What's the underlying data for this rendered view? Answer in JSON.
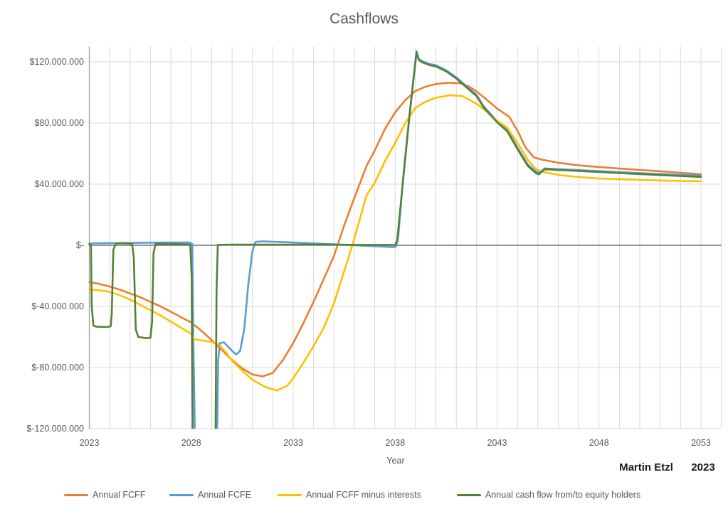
{
  "chart": {
    "title": "Cashflows",
    "x_axis": {
      "label": "Year",
      "tick_labels": [
        "2023",
        "2028",
        "2033",
        "2038",
        "2043",
        "2048",
        "2053"
      ],
      "tick_years": [
        2023,
        2028,
        2033,
        2038,
        2043,
        2048,
        2053
      ]
    },
    "y_axis": {
      "tick_labels": [
        "$120.000.000",
        "$80.000.000",
        "$40.000.000",
        "$-",
        "$-40.000.000",
        "$-80.000.000",
        "$-120.000.000"
      ],
      "tick_values_millions": [
        120,
        80,
        40,
        0,
        -40,
        -80,
        -120
      ]
    },
    "footer": {
      "author": "Martin Etzl",
      "year": "2023"
    },
    "colors": {
      "grid": "#D9D9D9",
      "zero_axis": "#595959",
      "y_axis_line": "#9e9e9e",
      "text": "#595959"
    }
  },
  "chart_data": {
    "type": "line",
    "title": "Cashflows",
    "xlabel": "Year",
    "ylabel": "",
    "values_unit": "millions of USD",
    "xlim": [
      2023,
      2054
    ],
    "ylim_millions": [
      -120,
      130
    ],
    "grid": {
      "vertical_step_years": 1,
      "horizontal_step_millions": 40,
      "legend_position": "bottom"
    },
    "x_ticks": [
      2023,
      2028,
      2033,
      2038,
      2043,
      2048,
      2053
    ],
    "y_ticks_millions": [
      120,
      80,
      40,
      0,
      -40,
      -80,
      -120
    ],
    "series": [
      {
        "name": "Annual FCFF",
        "color": "#ED7D31",
        "points": [
          [
            2023,
            -24
          ],
          [
            2023.5,
            -25.3
          ],
          [
            2024,
            -27
          ],
          [
            2024.5,
            -29
          ],
          [
            2025,
            -31.5
          ],
          [
            2025.5,
            -34
          ],
          [
            2026,
            -37
          ],
          [
            2026.5,
            -40
          ],
          [
            2027,
            -43.5
          ],
          [
            2027.5,
            -47
          ],
          [
            2028,
            -50.5
          ],
          [
            2028.5,
            -56
          ],
          [
            2029,
            -62
          ],
          [
            2029.5,
            -68.5
          ],
          [
            2030,
            -75
          ],
          [
            2030.5,
            -80.5
          ],
          [
            2031,
            -84.5
          ],
          [
            2031.5,
            -85.8
          ],
          [
            2032,
            -83.5
          ],
          [
            2032.5,
            -75
          ],
          [
            2033,
            -64
          ],
          [
            2033.5,
            -51
          ],
          [
            2034,
            -37
          ],
          [
            2034.5,
            -22
          ],
          [
            2035,
            -7
          ],
          [
            2035.5,
            13
          ],
          [
            2036,
            31
          ],
          [
            2036.6,
            52
          ],
          [
            2037,
            62
          ],
          [
            2037.5,
            76
          ],
          [
            2038,
            87
          ],
          [
            2038.5,
            95
          ],
          [
            2039,
            101
          ],
          [
            2039.5,
            103.8
          ],
          [
            2040,
            105.5
          ],
          [
            2040.6,
            106.3
          ],
          [
            2041.2,
            106
          ],
          [
            2041.6,
            104
          ],
          [
            2042,
            100.5
          ],
          [
            2042.4,
            96.3
          ],
          [
            2043,
            89.5
          ],
          [
            2043.3,
            86.8
          ],
          [
            2043.6,
            84
          ],
          [
            2044,
            75
          ],
          [
            2044.4,
            64
          ],
          [
            2044.8,
            57.5
          ],
          [
            2045.2,
            56
          ],
          [
            2046,
            54
          ],
          [
            2047,
            52.3
          ],
          [
            2048,
            51.2
          ],
          [
            2049,
            50.2
          ],
          [
            2050,
            49.3
          ],
          [
            2051,
            48.4
          ],
          [
            2052,
            47.4
          ],
          [
            2053,
            46.5
          ]
        ]
      },
      {
        "name": "Annual FCFE",
        "color": "#5B9BD5",
        "points": [
          [
            2023,
            1.2
          ],
          [
            2024,
            1.4
          ],
          [
            2025,
            1.5
          ],
          [
            2026,
            1.7
          ],
          [
            2027,
            1.8
          ],
          [
            2027.9,
            1.8
          ],
          [
            2028.05,
            1
          ],
          [
            2028.1,
            -60
          ],
          [
            2028.2,
            -140
          ],
          [
            2029.25,
            -140
          ],
          [
            2029.32,
            -75
          ],
          [
            2029.4,
            -64
          ],
          [
            2029.6,
            -63.5
          ],
          [
            2030,
            -69
          ],
          [
            2030.2,
            -71.5
          ],
          [
            2030.4,
            -69
          ],
          [
            2030.6,
            -55
          ],
          [
            2030.8,
            -25
          ],
          [
            2031,
            -4
          ],
          [
            2031.15,
            2.2
          ],
          [
            2031.5,
            2.6
          ],
          [
            2032,
            2.3
          ],
          [
            2033,
            1.8
          ],
          [
            2034,
            1.2
          ],
          [
            2035,
            0.6
          ],
          [
            2036,
            0
          ],
          [
            2037,
            -0.6
          ],
          [
            2037.9,
            -1.2
          ],
          [
            2038.05,
            -0.8
          ],
          [
            2038.15,
            5
          ],
          [
            2038.4,
            45
          ],
          [
            2038.7,
            85
          ],
          [
            2039.05,
            127
          ],
          [
            2039.15,
            122
          ],
          [
            2039.35,
            120.3
          ],
          [
            2039.7,
            118.5
          ],
          [
            2040,
            117.8
          ],
          [
            2040.5,
            114.5
          ],
          [
            2041,
            109.8
          ],
          [
            2041.5,
            104
          ],
          [
            2042,
            98.2
          ],
          [
            2042.35,
            90.8
          ],
          [
            2043,
            81.2
          ],
          [
            2043.5,
            75.3
          ],
          [
            2044,
            64
          ],
          [
            2044.5,
            53
          ],
          [
            2044.9,
            48.3
          ],
          [
            2045.05,
            47.7
          ],
          [
            2045.35,
            50.3
          ],
          [
            2046,
            49.8
          ],
          [
            2047,
            49.2
          ],
          [
            2048,
            48.5
          ],
          [
            2049,
            47.9
          ],
          [
            2050,
            47.2
          ],
          [
            2051,
            46.6
          ],
          [
            2052,
            46.1
          ],
          [
            2053,
            45.6
          ]
        ]
      },
      {
        "name": "Annual FCFF minus interests",
        "color": "#FFC000",
        "points": [
          [
            2023,
            -29
          ],
          [
            2023.5,
            -29.4
          ],
          [
            2024,
            -30.5
          ],
          [
            2024.5,
            -32.7
          ],
          [
            2025,
            -35.5
          ],
          [
            2025.5,
            -39
          ],
          [
            2026,
            -42.5
          ],
          [
            2026.5,
            -46
          ],
          [
            2027,
            -50
          ],
          [
            2027.5,
            -54
          ],
          [
            2028,
            -58
          ],
          [
            2028.15,
            -61.5
          ],
          [
            2028.5,
            -62.3
          ],
          [
            2029,
            -63.2
          ],
          [
            2029.35,
            -65
          ],
          [
            2029.7,
            -70
          ],
          [
            2030,
            -75.5
          ],
          [
            2030.5,
            -82
          ],
          [
            2031,
            -88
          ],
          [
            2031.6,
            -92.5
          ],
          [
            2032.2,
            -95
          ],
          [
            2032.7,
            -92
          ],
          [
            2033,
            -87
          ],
          [
            2033.5,
            -77
          ],
          [
            2034,
            -66
          ],
          [
            2034.5,
            -54
          ],
          [
            2035,
            -38
          ],
          [
            2035.5,
            -17
          ],
          [
            2035.9,
            0
          ],
          [
            2036.2,
            14
          ],
          [
            2036.6,
            32.5
          ],
          [
            2037,
            41
          ],
          [
            2037.5,
            55
          ],
          [
            2038,
            67
          ],
          [
            2038.5,
            80
          ],
          [
            2039,
            90
          ],
          [
            2039.5,
            94
          ],
          [
            2040,
            96.5
          ],
          [
            2040.7,
            98.2
          ],
          [
            2041.3,
            97.6
          ],
          [
            2042,
            92.5
          ],
          [
            2042.4,
            88.5
          ],
          [
            2043,
            81.5
          ],
          [
            2043.5,
            77
          ],
          [
            2044,
            67
          ],
          [
            2044.5,
            56
          ],
          [
            2044.9,
            49.8
          ],
          [
            2045.3,
            48
          ],
          [
            2046,
            46
          ],
          [
            2047,
            44.6
          ],
          [
            2048,
            43.7
          ],
          [
            2049,
            43.2
          ],
          [
            2050,
            42.8
          ],
          [
            2051,
            42.4
          ],
          [
            2052,
            42.1
          ],
          [
            2053,
            41.9
          ]
        ]
      },
      {
        "name": "Annual cash flow from/to equity holders",
        "color": "#548235",
        "points": [
          [
            2023,
            0.5
          ],
          [
            2023.08,
            0.3
          ],
          [
            2023.12,
            -40
          ],
          [
            2023.2,
            -52.5
          ],
          [
            2023.35,
            -53.3
          ],
          [
            2023.9,
            -53.5
          ],
          [
            2024.05,
            -53
          ],
          [
            2024.1,
            -45
          ],
          [
            2024.18,
            -3
          ],
          [
            2024.3,
            1.2
          ],
          [
            2024.7,
            1.3
          ],
          [
            2025.1,
            1
          ],
          [
            2025.18,
            -8
          ],
          [
            2025.28,
            -55
          ],
          [
            2025.4,
            -60
          ],
          [
            2025.8,
            -60.8
          ],
          [
            2026,
            -60.5
          ],
          [
            2026.08,
            -50
          ],
          [
            2026.15,
            -5
          ],
          [
            2026.25,
            0.8
          ],
          [
            2026.7,
            1
          ],
          [
            2027.3,
            0.8
          ],
          [
            2027.95,
            0.5
          ],
          [
            2028.02,
            -20
          ],
          [
            2028.08,
            -140
          ],
          [
            2029.18,
            -140
          ],
          [
            2029.24,
            -30
          ],
          [
            2029.3,
            0.3
          ],
          [
            2030,
            0.4
          ],
          [
            2031,
            0.4
          ],
          [
            2032,
            0.4
          ],
          [
            2033,
            0.4
          ],
          [
            2034,
            0.4
          ],
          [
            2035,
            0.4
          ],
          [
            2036,
            0.3
          ],
          [
            2037,
            0.3
          ],
          [
            2038,
            0.3
          ],
          [
            2038.1,
            3
          ],
          [
            2038.4,
            44
          ],
          [
            2038.7,
            84
          ],
          [
            2039.05,
            126.3
          ],
          [
            2039.15,
            121.3
          ],
          [
            2039.35,
            119.6
          ],
          [
            2039.7,
            117.8
          ],
          [
            2040,
            117
          ],
          [
            2040.5,
            113.8
          ],
          [
            2041,
            109.1
          ],
          [
            2041.5,
            103.3
          ],
          [
            2042,
            97.5
          ],
          [
            2042.35,
            90
          ],
          [
            2043,
            80.5
          ],
          [
            2043.5,
            74.5
          ],
          [
            2044,
            63
          ],
          [
            2044.5,
            52
          ],
          [
            2044.9,
            47.2
          ],
          [
            2045.05,
            46.4
          ],
          [
            2045.35,
            49.8
          ],
          [
            2046,
            49.2
          ],
          [
            2047,
            48.6
          ],
          [
            2048,
            47.9
          ],
          [
            2049,
            47.2
          ],
          [
            2050,
            46.6
          ],
          [
            2051,
            45.9
          ],
          [
            2052,
            45.3
          ],
          [
            2053,
            44.7
          ]
        ]
      }
    ]
  }
}
